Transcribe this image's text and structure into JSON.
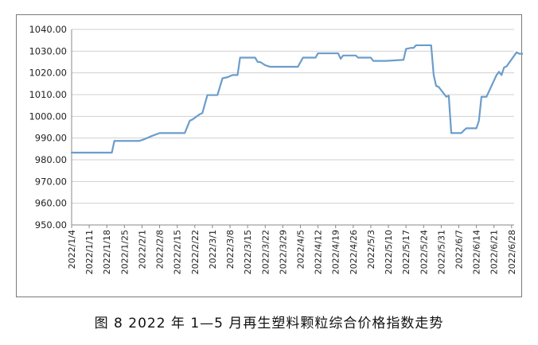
{
  "caption": "图 8  2022 年 1—5 月再生塑料颗粒综合价格指数走势",
  "chart_data": {
    "type": "line",
    "title": "",
    "xlabel": "",
    "ylabel": "",
    "ylim": [
      950,
      1040
    ],
    "ytick_step": 10,
    "grid": "horizontal",
    "line_color": "#6b9dcb",
    "x_tick_labels": [
      "2022/1/4",
      "2022/1/11",
      "2022/1/18",
      "2022/1/25",
      "2022/2/1",
      "2022/2/8",
      "2022/2/15",
      "2022/2/22",
      "2022/3/1",
      "2022/3/8",
      "2022/3/15",
      "2022/3/22",
      "2022/3/29",
      "2022/4/5",
      "2022/4/12",
      "2022/4/19",
      "2022/4/26",
      "2022/5/3",
      "2022/5/10",
      "2022/5/17",
      "2022/5/24",
      "2022/5/31",
      "2022/6/7",
      "2022/6/14",
      "2022/6/21",
      "2022/6/28"
    ],
    "series": [
      {
        "name": "",
        "points": [
          [
            "2022/1/4",
            983.3
          ],
          [
            "2022/1/20",
            983.3
          ],
          [
            "2022/1/21",
            988.7
          ],
          [
            "2022/1/31",
            988.7
          ],
          [
            "2022/2/2",
            989.5
          ],
          [
            "2022/2/5",
            991.0
          ],
          [
            "2022/2/8",
            992.3
          ],
          [
            "2022/2/18",
            992.3
          ],
          [
            "2022/2/20",
            998.0
          ],
          [
            "2022/2/21",
            998.5
          ],
          [
            "2022/2/24",
            1001.0
          ],
          [
            "2022/2/25",
            1001.5
          ],
          [
            "2022/2/27",
            1009.8
          ],
          [
            "2022/3/3",
            1009.8
          ],
          [
            "2022/3/5",
            1017.5
          ],
          [
            "2022/3/7",
            1018.0
          ],
          [
            "2022/3/9",
            1019.0
          ],
          [
            "2022/3/11",
            1019.0
          ],
          [
            "2022/3/12",
            1027.0
          ],
          [
            "2022/3/18",
            1027.0
          ],
          [
            "2022/3/19",
            1025.0
          ],
          [
            "2022/3/20",
            1025.0
          ],
          [
            "2022/3/22",
            1023.5
          ],
          [
            "2022/3/24",
            1022.8
          ],
          [
            "2022/4/4",
            1022.8
          ],
          [
            "2022/4/6",
            1027.0
          ],
          [
            "2022/4/11",
            1027.0
          ],
          [
            "2022/4/12",
            1029.0
          ],
          [
            "2022/4/20",
            1029.0
          ],
          [
            "2022/4/21",
            1026.5
          ],
          [
            "2022/4/22",
            1028.0
          ],
          [
            "2022/4/27",
            1028.0
          ],
          [
            "2022/4/28",
            1027.0
          ],
          [
            "2022/5/3",
            1027.0
          ],
          [
            "2022/5/4",
            1025.5
          ],
          [
            "2022/5/9",
            1025.5
          ],
          [
            "2022/5/16",
            1026.0
          ],
          [
            "2022/5/17",
            1031.0
          ],
          [
            "2022/5/19",
            1031.5
          ],
          [
            "2022/5/20",
            1031.5
          ],
          [
            "2022/5/21",
            1032.7
          ],
          [
            "2022/5/27",
            1032.7
          ],
          [
            "2022/5/28",
            1019.0
          ],
          [
            "2022/5/29",
            1014.0
          ],
          [
            "2022/5/30",
            1013.5
          ],
          [
            "2022/6/1",
            1010.5
          ],
          [
            "2022/6/2",
            1009.0
          ],
          [
            "2022/6/3",
            1009.5
          ],
          [
            "2022/6/4",
            992.3
          ],
          [
            "2022/6/8",
            992.3
          ],
          [
            "2022/6/9",
            993.5
          ],
          [
            "2022/6/10",
            994.5
          ],
          [
            "2022/6/14",
            994.5
          ],
          [
            "2022/6/15",
            998.0
          ],
          [
            "2022/6/16",
            1009.0
          ],
          [
            "2022/6/18",
            1009.0
          ],
          [
            "2022/6/22",
            1019.0
          ],
          [
            "2022/6/23",
            1020.5
          ],
          [
            "2022/6/24",
            1019.0
          ],
          [
            "2022/6/25",
            1022.5
          ],
          [
            "2022/6/26",
            1023.0
          ],
          [
            "2022/6/30",
            1029.5
          ],
          [
            "2022/7/1",
            1028.8
          ],
          [
            "2022/7/8",
            1028.8
          ]
        ]
      }
    ]
  }
}
